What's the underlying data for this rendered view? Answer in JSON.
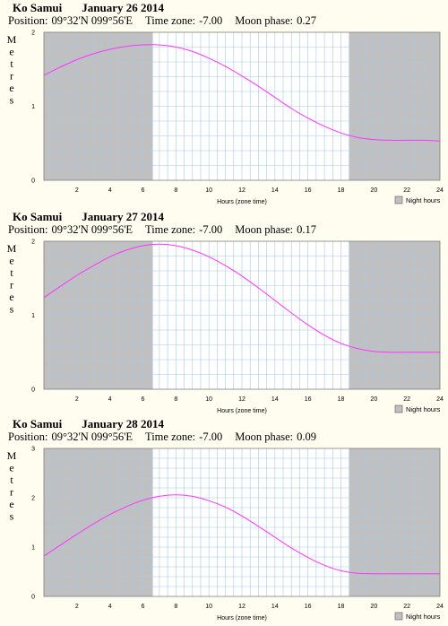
{
  "chart_data": [
    {
      "type": "line",
      "location": "Ko Samui",
      "date": "January 26 2014",
      "position_label": "Position:",
      "position": "09°32'N 099°56'E",
      "timezone_label": "Time zone:",
      "timezone": "-7.00",
      "moon_label": "Moon phase:",
      "moon_phase": "0.27",
      "ylabel": "Metres",
      "xlabel": "Hours (zone time)",
      "legend": "Night hours",
      "ylim": [
        0,
        2
      ],
      "xlim": [
        0,
        24
      ],
      "yticks": [
        "0",
        "1",
        "2"
      ],
      "xticks": [
        "2",
        "4",
        "6",
        "8",
        "10",
        "12",
        "14",
        "16",
        "18",
        "20",
        "22",
        "24"
      ],
      "night": [
        [
          0,
          6.6
        ],
        [
          18.5,
          24
        ]
      ],
      "x": [
        0,
        1,
        2,
        3,
        4,
        5,
        6,
        7,
        8,
        9,
        10,
        11,
        12,
        13,
        14,
        15,
        16,
        17,
        18,
        19,
        20,
        21,
        22,
        23,
        24
      ],
      "y": [
        1.42,
        1.53,
        1.63,
        1.71,
        1.77,
        1.81,
        1.83,
        1.83,
        1.8,
        1.74,
        1.65,
        1.54,
        1.41,
        1.27,
        1.12,
        0.97,
        0.84,
        0.73,
        0.64,
        0.58,
        0.55,
        0.54,
        0.54,
        0.54,
        0.53
      ]
    },
    {
      "type": "line",
      "location": "Ko Samui",
      "date": "January 27 2014",
      "position_label": "Position:",
      "position": "09°32'N 099°56'E",
      "timezone_label": "Time zone:",
      "timezone": "-7.00",
      "moon_label": "Moon phase:",
      "moon_phase": "0.17",
      "ylabel": "Metres",
      "xlabel": "Hours (zone time)",
      "legend": "Night hours",
      "ylim": [
        0,
        2
      ],
      "xlim": [
        0,
        24
      ],
      "yticks": [
        "0",
        "1",
        "2"
      ],
      "xticks": [
        "2",
        "4",
        "6",
        "8",
        "10",
        "12",
        "14",
        "16",
        "18",
        "20",
        "22",
        "24"
      ],
      "night": [
        [
          0,
          6.6
        ],
        [
          18.5,
          24
        ]
      ],
      "x": [
        0,
        1,
        2,
        3,
        4,
        5,
        6,
        7,
        8,
        9,
        10,
        11,
        12,
        13,
        14,
        15,
        16,
        17,
        18,
        19,
        20,
        21,
        22,
        23,
        24
      ],
      "y": [
        1.24,
        1.39,
        1.54,
        1.67,
        1.79,
        1.88,
        1.94,
        1.96,
        1.94,
        1.88,
        1.79,
        1.67,
        1.53,
        1.37,
        1.2,
        1.03,
        0.87,
        0.73,
        0.62,
        0.55,
        0.51,
        0.5,
        0.5,
        0.5,
        0.5
      ]
    },
    {
      "type": "line",
      "location": "Ko Samui",
      "date": "January 28 2014",
      "position_label": "Position:",
      "position": "09°32'N 099°56'E",
      "timezone_label": "Time zone:",
      "timezone": "-7.00",
      "moon_label": "Moon phase:",
      "moon_phase": "0.09",
      "ylabel": "Metres",
      "xlabel": "Hours (zone time)",
      "legend": "Night hours",
      "ylim": [
        0,
        3
      ],
      "xlim": [
        0,
        24
      ],
      "yticks": [
        "0",
        "1",
        "2",
        "3"
      ],
      "xticks": [
        "2",
        "4",
        "6",
        "8",
        "10",
        "12",
        "14",
        "16",
        "18",
        "20",
        "22",
        "24"
      ],
      "night": [
        [
          0,
          6.6
        ],
        [
          18.5,
          24
        ]
      ],
      "x": [
        0,
        1,
        2,
        3,
        4,
        5,
        6,
        7,
        8,
        9,
        10,
        11,
        12,
        13,
        14,
        15,
        16,
        17,
        18,
        19,
        20,
        21,
        22,
        23,
        24
      ],
      "y": [
        0.82,
        1.04,
        1.26,
        1.47,
        1.66,
        1.82,
        1.95,
        2.03,
        2.06,
        2.03,
        1.94,
        1.81,
        1.63,
        1.42,
        1.2,
        0.98,
        0.79,
        0.63,
        0.52,
        0.47,
        0.46,
        0.46,
        0.46,
        0.46,
        0.46
      ]
    }
  ],
  "colors": {
    "night": "#c0c0c0",
    "grid": "#a8c8e8",
    "curve": "#ff33ff",
    "day": "#ffffff"
  }
}
